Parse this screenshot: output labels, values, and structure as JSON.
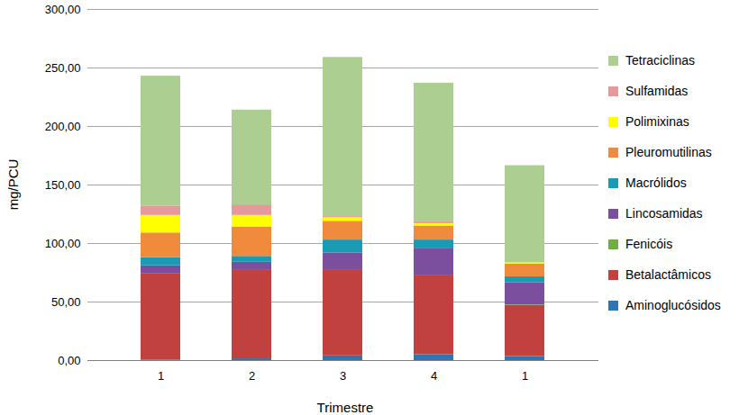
{
  "chart_data": {
    "type": "bar",
    "stacked": true,
    "grid": true,
    "legend": "right",
    "x_label": "Trimestre",
    "y_label": "mg/PCU",
    "categories": [
      "1",
      "2",
      "3",
      "4",
      "1"
    ],
    "ylim": [
      0,
      300
    ],
    "yticks": [
      {
        "value": 0,
        "label": "0,00"
      },
      {
        "value": 50,
        "label": "50,00"
      },
      {
        "value": 100,
        "label": "100,00"
      },
      {
        "value": 150,
        "label": "150,00"
      },
      {
        "value": 200,
        "label": "200,00"
      },
      {
        "value": 250,
        "label": "250,00"
      },
      {
        "value": 300,
        "label": "300,00"
      }
    ],
    "series": [
      {
        "name": "Aminoglucósidos",
        "color": "#2e75b6",
        "values": [
          0.5,
          1.5,
          4,
          5,
          3.5
        ]
      },
      {
        "name": "Betalactâmicos",
        "color": "#c0413e",
        "values": [
          73.5,
          75.5,
          73,
          68,
          43.5
        ]
      },
      {
        "name": "Fenicóis",
        "color": "#70ad47",
        "values": [
          0,
          0,
          0,
          0,
          0.5
        ]
      },
      {
        "name": "Lincosamidas",
        "color": "#7b4f9d",
        "values": [
          7,
          7,
          15,
          23,
          19
        ]
      },
      {
        "name": "Macrólidos",
        "color": "#1a9bb5",
        "values": [
          7,
          5,
          11,
          7,
          5
        ]
      },
      {
        "name": "Pleuromutilinas",
        "color": "#f08a3c",
        "values": [
          21,
          25,
          16,
          12,
          11
        ]
      },
      {
        "name": "Polimixinas",
        "color": "#ffff00",
        "values": [
          15,
          10,
          3,
          2,
          1
        ]
      },
      {
        "name": "Sulfamidas",
        "color": "#e6999b",
        "values": [
          8,
          9,
          1,
          2,
          0
        ]
      },
      {
        "name": "Tetraciclinas",
        "color": "#acce91",
        "values": [
          111,
          81,
          136,
          118,
          83
        ]
      }
    ]
  }
}
